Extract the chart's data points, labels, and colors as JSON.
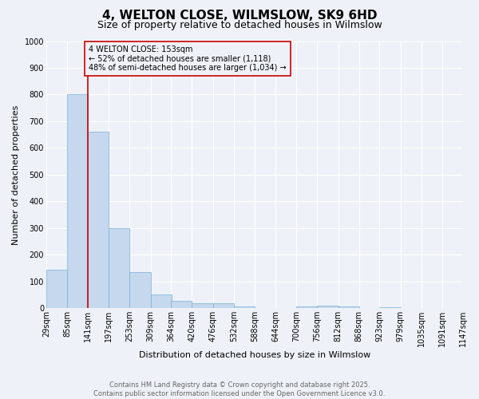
{
  "title": "4, WELTON CLOSE, WILMSLOW, SK9 6HD",
  "subtitle": "Size of property relative to detached houses in Wilmslow",
  "xlabel": "Distribution of detached houses by size in Wilmslow",
  "ylabel": "Number of detached properties",
  "bar_color": "#c5d8ee",
  "bar_edge_color": "#7aafd4",
  "bins": [
    29,
    85,
    141,
    197,
    253,
    309,
    364,
    420,
    476,
    532,
    588,
    644,
    700,
    756,
    812,
    868,
    923,
    979,
    1035,
    1091,
    1147
  ],
  "bin_labels": [
    "29sqm",
    "85sqm",
    "141sqm",
    "197sqm",
    "253sqm",
    "309sqm",
    "364sqm",
    "420sqm",
    "476sqm",
    "532sqm",
    "588sqm",
    "644sqm",
    "700sqm",
    "756sqm",
    "812sqm",
    "868sqm",
    "923sqm",
    "979sqm",
    "1035sqm",
    "1091sqm",
    "1147sqm"
  ],
  "values": [
    145,
    800,
    660,
    300,
    135,
    52,
    28,
    18,
    18,
    7,
    0,
    0,
    8,
    10,
    7,
    0,
    5,
    0,
    0,
    0
  ],
  "property_line_x": 141,
  "property_line_color": "#cc0000",
  "annotation_text": "4 WELTON CLOSE: 153sqm\n← 52% of detached houses are smaller (1,118)\n48% of semi-detached houses are larger (1,034) →",
  "annotation_box_color": "#cc0000",
  "ylim": [
    0,
    1000
  ],
  "yticks": [
    0,
    100,
    200,
    300,
    400,
    500,
    600,
    700,
    800,
    900,
    1000
  ],
  "footnote": "Contains HM Land Registry data © Crown copyright and database right 2025.\nContains public sector information licensed under the Open Government Licence v3.0.",
  "background_color": "#eef2f8",
  "grid_color": "#ffffff",
  "title_fontsize": 11,
  "subtitle_fontsize": 9,
  "label_fontsize": 8,
  "tick_fontsize": 7,
  "annot_fontsize": 7,
  "footnote_fontsize": 6
}
